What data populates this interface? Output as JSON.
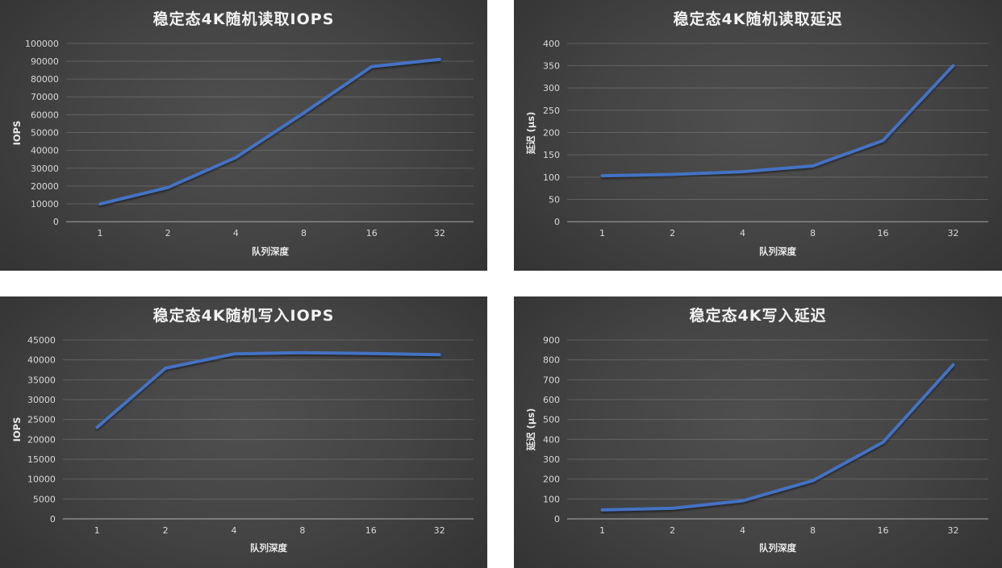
{
  "page": {
    "background_color": "#ffffff",
    "panel_bg_center_color": "#4f4f4f",
    "panel_bg_edge_color": "#1c1c1c"
  },
  "style": {
    "line_color": "#4472c4",
    "gridline_color": "rgba(255,255,255,0.16)",
    "axis_line_color": "rgba(255,255,255,0.48)",
    "title_color": "#f2f2f2",
    "tick_color": "#d9d9d9"
  },
  "chart_data": [
    {
      "id": "steady-state-4k-random-read-iops",
      "type": "line",
      "title": "稳定态4K随机读取IOPS",
      "xlabel": "队列深度",
      "ylabel": "IOPS",
      "categories": [
        "1",
        "2",
        "4",
        "8",
        "16",
        "32"
      ],
      "values": [
        9900,
        19200,
        36000,
        61000,
        87000,
        91000
      ],
      "ylim": [
        0,
        100000
      ],
      "y_step": 10000,
      "grid": "horizontal",
      "legend": false
    },
    {
      "id": "steady-state-4k-random-read-latency",
      "type": "line",
      "title": "稳定态4K随机读取延迟",
      "xlabel": "队列深度",
      "ylabel": "延迟 (µs)",
      "categories": [
        "1",
        "2",
        "4",
        "8",
        "16",
        "32"
      ],
      "values": [
        103,
        106,
        112,
        125,
        182,
        350
      ],
      "ylim": [
        0,
        400
      ],
      "y_step": 50,
      "grid": "horizontal",
      "legend": false
    },
    {
      "id": "steady-state-4k-random-write-iops",
      "type": "line",
      "title": "稳定态4K随机写入IOPS",
      "xlabel": "队列深度",
      "ylabel": "IOPS",
      "categories": [
        "1",
        "2",
        "4",
        "8",
        "16",
        "32"
      ],
      "values": [
        23000,
        37900,
        41500,
        41800,
        41600,
        41300
      ],
      "ylim": [
        0,
        45000
      ],
      "y_step": 5000,
      "grid": "horizontal",
      "legend": false
    },
    {
      "id": "steady-state-4k-write-latency",
      "type": "line",
      "title": "稳定态4K写入延迟",
      "xlabel": "队列深度",
      "ylabel": "延迟 (µs)",
      "categories": [
        "1",
        "2",
        "4",
        "8",
        "16",
        "32"
      ],
      "values": [
        45,
        53,
        91,
        192,
        385,
        775
      ],
      "ylim": [
        0,
        900
      ],
      "y_step": 100,
      "grid": "horizontal",
      "legend": false
    }
  ]
}
